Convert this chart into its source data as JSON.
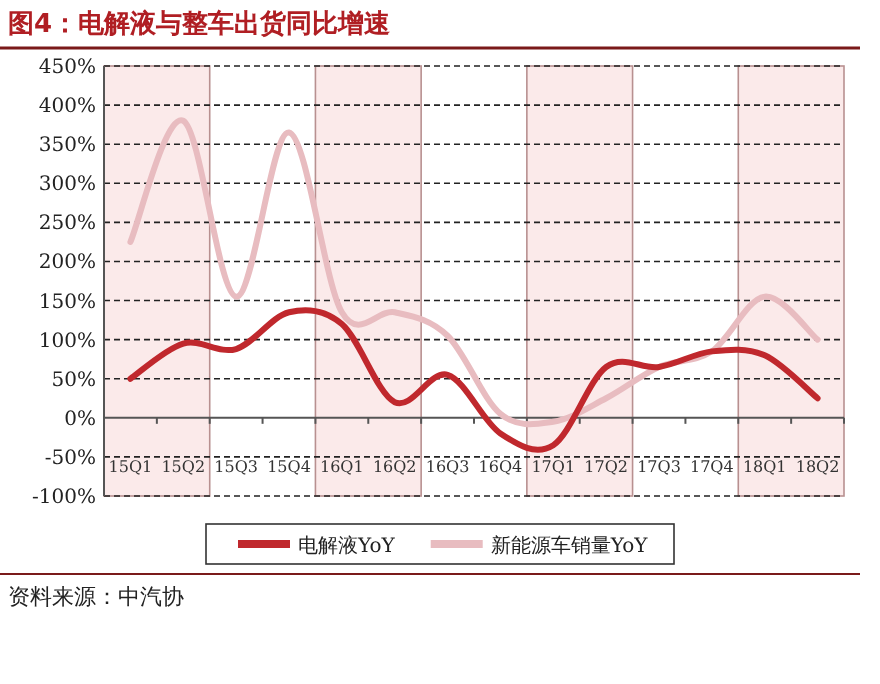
{
  "chart_data": {
    "type": "line",
    "title": "图4：电解液与整车出货同比增速",
    "annotations": [
      "资料来源：中汽协"
    ],
    "categories": [
      "15Q1",
      "15Q2",
      "15Q3",
      "15Q4",
      "16Q1",
      "16Q2",
      "16Q3",
      "16Q4",
      "17Q1",
      "17Q2",
      "17Q3",
      "17Q4",
      "18Q1",
      "18Q2"
    ],
    "series": [
      {
        "name": "电解液YoY",
        "color": "#c0282d",
        "values": [
          50,
          95,
          88,
          135,
          120,
          20,
          55,
          -20,
          -35,
          65,
          65,
          85,
          80,
          25
        ]
      },
      {
        "name": "新能源车销量YoY",
        "color": "#e8bcc0",
        "values": [
          225,
          380,
          155,
          365,
          135,
          135,
          105,
          5,
          -5,
          25,
          65,
          85,
          155,
          100
        ]
      }
    ],
    "ylim": [
      -100,
      450
    ],
    "yticks": [
      {
        "value": -100,
        "label": "-100%"
      },
      {
        "value": -50,
        "label": "-50%"
      },
      {
        "value": 0,
        "label": "0%"
      },
      {
        "value": 50,
        "label": "50%"
      },
      {
        "value": 100,
        "label": "100%"
      },
      {
        "value": 150,
        "label": "150%"
      },
      {
        "value": 200,
        "label": "200%"
      },
      {
        "value": 250,
        "label": "250%"
      },
      {
        "value": 300,
        "label": "300%"
      },
      {
        "value": 350,
        "label": "350%"
      },
      {
        "value": 400,
        "label": "400%"
      },
      {
        "value": 450,
        "label": "450%"
      }
    ],
    "grid": "y",
    "legend": "bottom",
    "line_style": "solid",
    "marker": "none",
    "bands": [
      {
        "axis": "x",
        "from": "15Q1",
        "to": "15Q2",
        "color": "#fbeaea"
      },
      {
        "axis": "x",
        "from": "16Q1",
        "to": "16Q2",
        "color": "#fbeaea"
      },
      {
        "axis": "x",
        "from": "17Q1",
        "to": "17Q2",
        "color": "#fbeaea"
      },
      {
        "axis": "x",
        "from": "18Q1",
        "to": "18Q2",
        "color": "#fbeaea"
      }
    ]
  }
}
